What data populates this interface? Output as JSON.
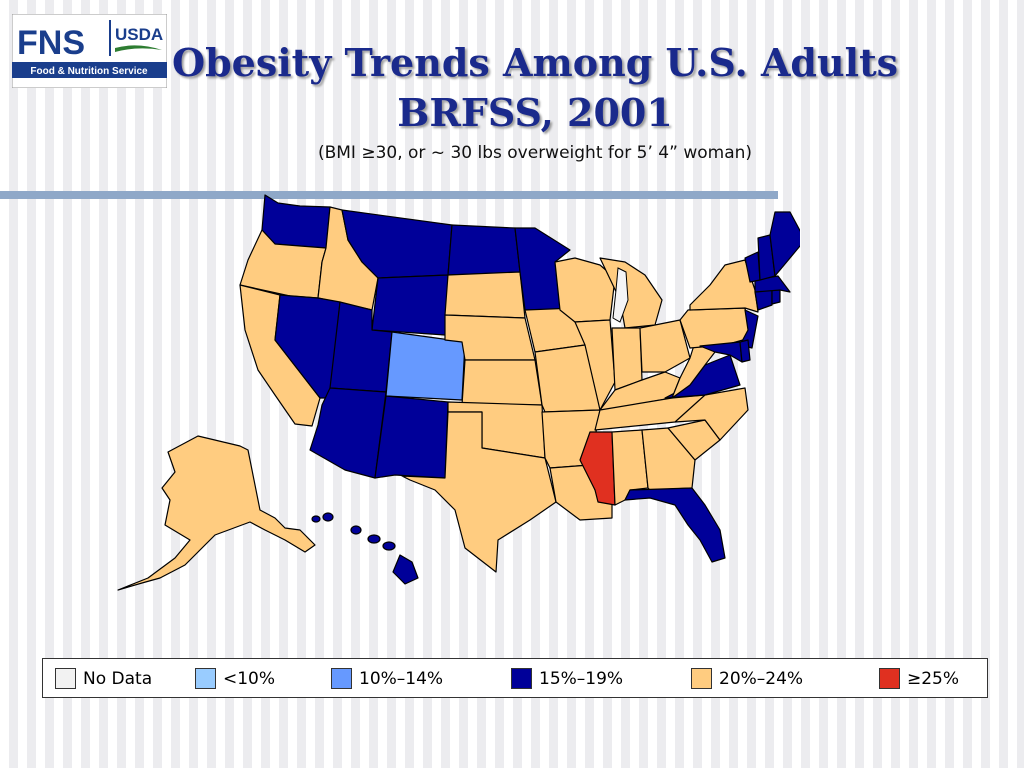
{
  "logo": {
    "main": "FNS",
    "agency": "USDA",
    "tagline": "Food & Nutrition Service"
  },
  "title": {
    "line1": "Obesity Trends Among U.S. Adults",
    "line2": "BRFSS, 2001",
    "subtitle": "(BMI ≥30, or ~ 30 lbs overweight for 5’ 4” woman)"
  },
  "colors": {
    "no_data": "#f2f2f2",
    "lt10": "#99ccff",
    "p10_14": "#6699ff",
    "p15_19": "#000099",
    "p20_24": "#ffcc80",
    "ge25": "#e03020",
    "outline": "#000000"
  },
  "legend": [
    {
      "key": "no_data",
      "label": "No Data"
    },
    {
      "key": "lt10",
      "label": "<10%"
    },
    {
      "key": "p10_14",
      "label": "10%–14%"
    },
    {
      "key": "p15_19",
      "label": "15%–19%"
    },
    {
      "key": "p20_24",
      "label": "20%–24%"
    },
    {
      "key": "ge25",
      "label": "≥25%"
    }
  ],
  "states": {
    "WA": "p15_19",
    "OR": "p20_24",
    "CA": "p20_24",
    "ID": "p20_24",
    "NV": "p15_19",
    "MT": "p15_19",
    "WY": "p15_19",
    "UT": "p15_19",
    "AZ": "p15_19",
    "CO": "p10_14",
    "NM": "p15_19",
    "ND": "p15_19",
    "SD": "p20_24",
    "NE": "p20_24",
    "KS": "p20_24",
    "OK": "p20_24",
    "TX": "p20_24",
    "MN": "p15_19",
    "IA": "p20_24",
    "MO": "p20_24",
    "AR": "p20_24",
    "LA": "p20_24",
    "WI": "p20_24",
    "IL": "p20_24",
    "MI": "p20_24",
    "IN": "p20_24",
    "OH": "p20_24",
    "KY": "p20_24",
    "TN": "p20_24",
    "MS": "ge25",
    "AL": "p20_24",
    "GA": "p20_24",
    "FL": "p15_19",
    "SC": "p20_24",
    "NC": "p20_24",
    "VA": "p15_19",
    "WV": "p20_24",
    "PA": "p20_24",
    "NY": "p20_24",
    "NJ": "p15_19",
    "DE": "p15_19",
    "MD": "p15_19",
    "CT": "p15_19",
    "RI": "p15_19",
    "MA": "p15_19",
    "VT": "p15_19",
    "NH": "p15_19",
    "ME": "p15_19",
    "AK": "p20_24",
    "HI": "p15_19"
  }
}
